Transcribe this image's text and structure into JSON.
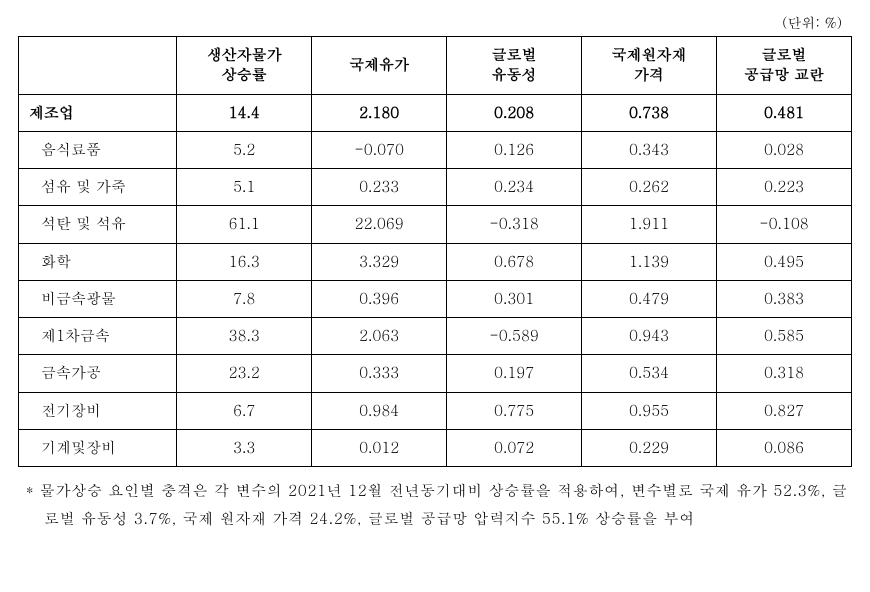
{
  "unit_label": "(단위: %)",
  "columns": [
    "",
    "생산자물가\n상승률",
    "국제유가",
    "글로벌\n유동성",
    "국제원자재\n가격",
    "글로벌\n공급망 교란"
  ],
  "rows": [
    {
      "label": "제조업",
      "bold": true,
      "cells": [
        "14.4",
        "2.180",
        "0.208",
        "0.738",
        "0.481"
      ]
    },
    {
      "label": "음식료품",
      "bold": false,
      "cells": [
        "5.2",
        "-0.070",
        "0.126",
        "0.343",
        "0.028"
      ]
    },
    {
      "label": "섬유 및 가죽",
      "bold": false,
      "cells": [
        "5.1",
        "0.233",
        "0.234",
        "0.262",
        "0.223"
      ]
    },
    {
      "label": "석탄 및 석유",
      "bold": false,
      "cells": [
        "61.1",
        "22.069",
        "-0.318",
        "1.911",
        "-0.108"
      ]
    },
    {
      "label": "화학",
      "bold": false,
      "cells": [
        "16.3",
        "3.329",
        "0.678",
        "1.139",
        "0.495"
      ]
    },
    {
      "label": "비금속광물",
      "bold": false,
      "cells": [
        "7.8",
        "0.396",
        "0.301",
        "0.479",
        "0.383"
      ]
    },
    {
      "label": "제1차금속",
      "bold": false,
      "cells": [
        "38.3",
        "2.063",
        "-0.589",
        "0.943",
        "0.585"
      ]
    },
    {
      "label": "금속가공",
      "bold": false,
      "cells": [
        "23.2",
        "0.333",
        "0.197",
        "0.534",
        "0.318"
      ]
    },
    {
      "label": "전기장비",
      "bold": false,
      "cells": [
        "6.7",
        "0.984",
        "0.775",
        "0.955",
        "0.827"
      ]
    },
    {
      "label": "기계및장비",
      "bold": false,
      "cells": [
        "3.3",
        "0.012",
        "0.072",
        "0.229",
        "0.086"
      ]
    }
  ],
  "footnote": "* 물가상승 요인별 충격은 각 변수의 2021년 12월 전년동기대비 상승률을 적용하여, 변수별로 국제 유가 52.3%, 글로벌 유동성 3.7%, 국제 원자재 가격 24.2%, 글로벌 공급망 압력지수 55.1% 상승률을 부여"
}
